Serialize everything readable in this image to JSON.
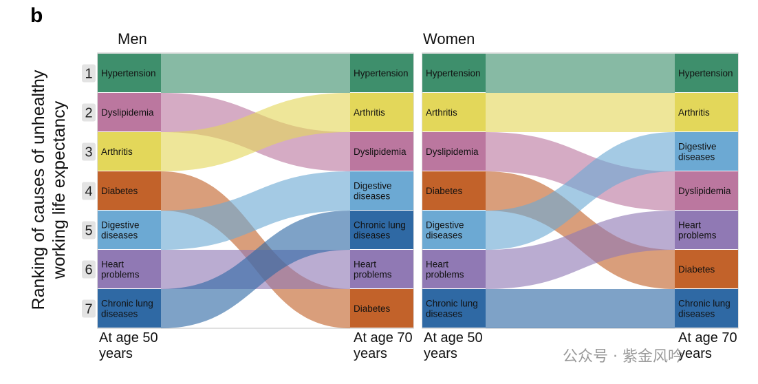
{
  "panel_label": "b",
  "watermark": "公众号 · 紫金风吟",
  "chart_data": {
    "type": "sankey",
    "ylabel_lines": [
      "Ranking of causes of unhealthy",
      "working life expectancy"
    ],
    "ranks": [
      "1",
      "2",
      "3",
      "4",
      "5",
      "6",
      "7"
    ],
    "start_label_lines": [
      "At age 50",
      "years"
    ],
    "end_label_lines": [
      "At age 70",
      "years"
    ],
    "colors": {
      "Hypertension": "#3e8f6c",
      "Dyslipidemia": "#bb779f",
      "Arthritis": "#e3d75a",
      "Diabetes": "#c2622a",
      "Digestive diseases": "#6ca9d3",
      "Heart problems": "#9079b4",
      "Chronic lung diseases": "#2f69a4"
    },
    "groups": [
      {
        "title": "Men",
        "start": [
          {
            "name": "Hypertension",
            "lines": [
              "Hypertension"
            ]
          },
          {
            "name": "Dyslipidemia",
            "lines": [
              "Dyslipidemia"
            ]
          },
          {
            "name": "Arthritis",
            "lines": [
              "Arthritis"
            ]
          },
          {
            "name": "Diabetes",
            "lines": [
              "Diabetes"
            ]
          },
          {
            "name": "Digestive diseases",
            "lines": [
              "Digestive",
              "diseases"
            ]
          },
          {
            "name": "Heart problems",
            "lines": [
              "Heart",
              "problems"
            ]
          },
          {
            "name": "Chronic lung diseases",
            "lines": [
              "Chronic lung",
              "diseases"
            ]
          }
        ],
        "end": [
          {
            "name": "Hypertension",
            "lines": [
              "Hypertension"
            ]
          },
          {
            "name": "Arthritis",
            "lines": [
              "Arthritis"
            ]
          },
          {
            "name": "Dyslipidemia",
            "lines": [
              "Dyslipidemia"
            ]
          },
          {
            "name": "Digestive diseases",
            "lines": [
              "Digestive",
              "diseases"
            ]
          },
          {
            "name": "Chronic lung diseases",
            "lines": [
              "Chronic lung",
              "diseases"
            ]
          },
          {
            "name": "Heart problems",
            "lines": [
              "Heart",
              "problems"
            ]
          },
          {
            "name": "Diabetes",
            "lines": [
              "Diabetes"
            ]
          }
        ]
      },
      {
        "title": "Women",
        "start": [
          {
            "name": "Hypertension",
            "lines": [
              "Hypertension"
            ]
          },
          {
            "name": "Arthritis",
            "lines": [
              "Arthritis"
            ]
          },
          {
            "name": "Dyslipidemia",
            "lines": [
              "Dyslipidemia"
            ]
          },
          {
            "name": "Diabetes",
            "lines": [
              "Diabetes"
            ]
          },
          {
            "name": "Digestive diseases",
            "lines": [
              "Digestive",
              "diseases"
            ]
          },
          {
            "name": "Heart problems",
            "lines": [
              "Heart",
              "problems"
            ]
          },
          {
            "name": "Chronic lung diseases",
            "lines": [
              "Chronic lung",
              "diseases"
            ]
          }
        ],
        "end": [
          {
            "name": "Hypertension",
            "lines": [
              "Hypertension"
            ]
          },
          {
            "name": "Arthritis",
            "lines": [
              "Arthritis"
            ]
          },
          {
            "name": "Digestive diseases",
            "lines": [
              "Digestive",
              "diseases"
            ]
          },
          {
            "name": "Dyslipidemia",
            "lines": [
              "Dyslipidemia"
            ]
          },
          {
            "name": "Heart problems",
            "lines": [
              "Heart",
              "problems"
            ]
          },
          {
            "name": "Diabetes",
            "lines": [
              "Diabetes"
            ]
          },
          {
            "name": "Chronic lung diseases",
            "lines": [
              "Chronic lung",
              "diseases"
            ]
          }
        ]
      }
    ]
  }
}
